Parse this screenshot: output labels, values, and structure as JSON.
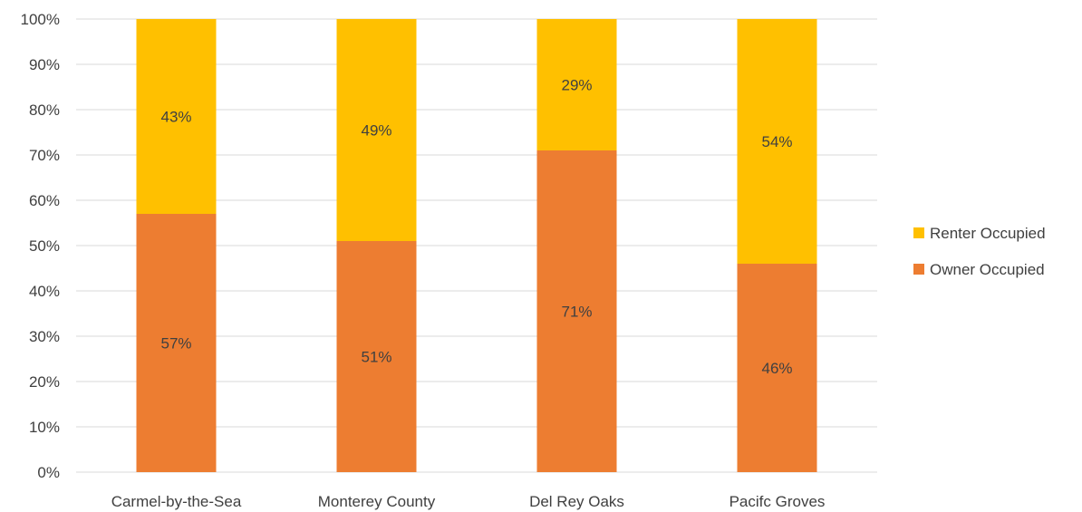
{
  "chart_data": {
    "type": "bar",
    "stacked": true,
    "percent_stacked": true,
    "categories": [
      "Carmel-by-the-Sea",
      "Monterey County",
      "Del Rey Oaks",
      "Pacifc Groves"
    ],
    "series": [
      {
        "name": "Owner Occupied",
        "values": [
          57,
          51,
          71,
          46
        ],
        "labels": [
          "57%",
          "51%",
          "71%",
          "46%"
        ],
        "color": "#ED7D31"
      },
      {
        "name": "Renter Occupied",
        "values": [
          43,
          49,
          29,
          54
        ],
        "labels": [
          "43%",
          "49%",
          "29%",
          "54%"
        ],
        "color": "#FFC000"
      }
    ],
    "y_ticks": [
      "0%",
      "10%",
      "20%",
      "30%",
      "40%",
      "50%",
      "60%",
      "70%",
      "80%",
      "90%",
      "100%"
    ],
    "ylim": [
      0,
      100
    ],
    "grid": true,
    "gridline_color": "#D9D9D9",
    "legend_position": "right",
    "legend_order": [
      "Renter Occupied",
      "Owner Occupied"
    ]
  }
}
